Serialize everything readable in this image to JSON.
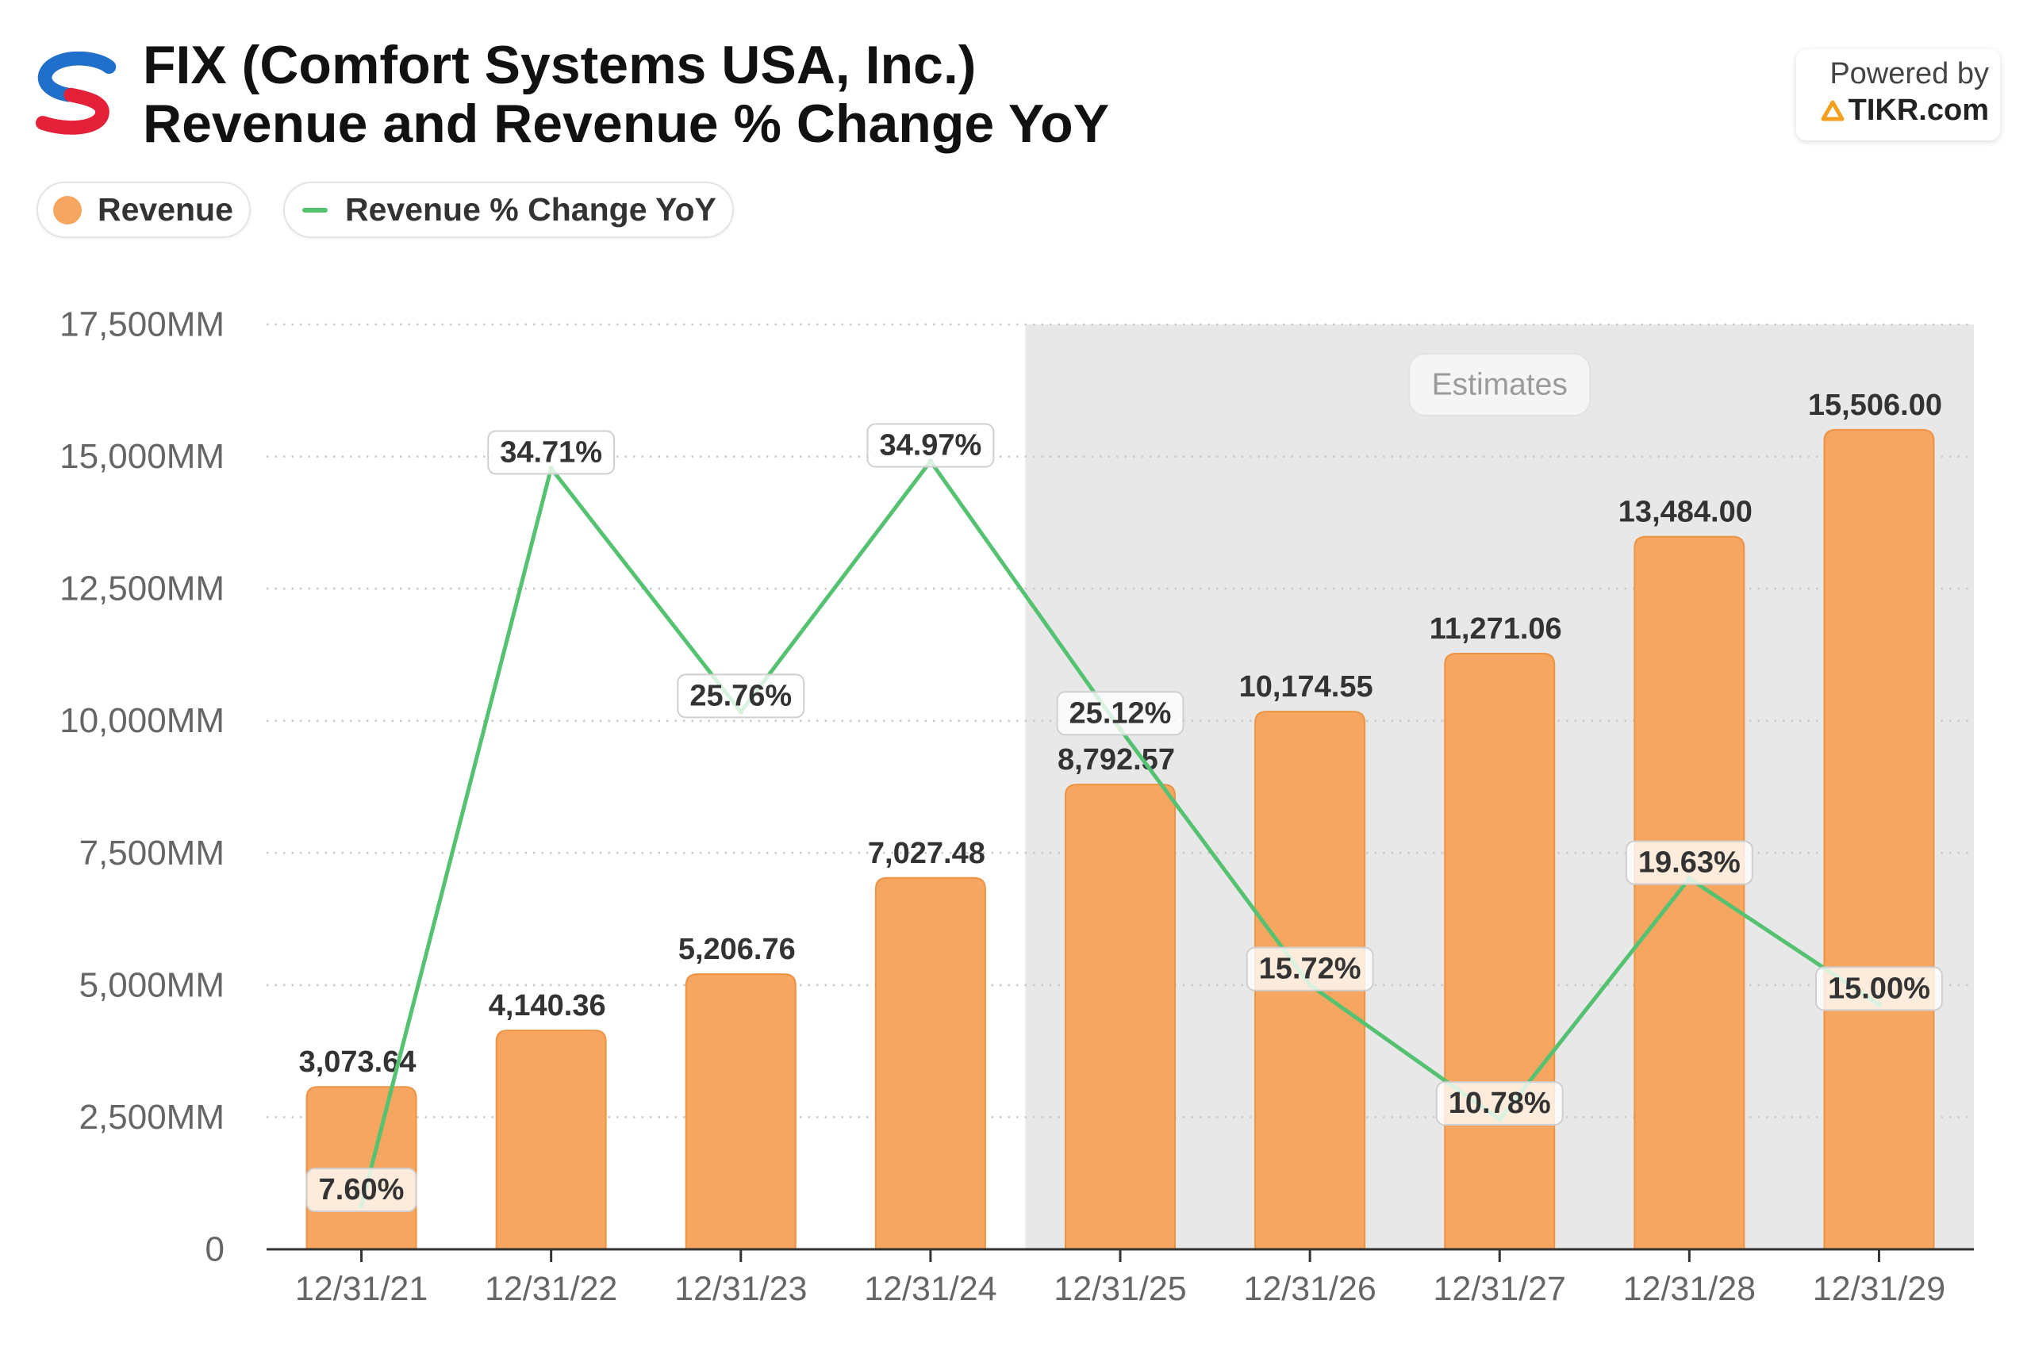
{
  "header": {
    "logo_icon": "comfort-systems-logo-icon"
  },
  "branding": {
    "powered_by": "Powered by",
    "site": "TIKR.com",
    "icon": "tikr-logo-icon"
  },
  "chart_data": {
    "type": "bar",
    "title_lines": [
      "FIX (Comfort Systems USA, Inc.)",
      "Revenue and Revenue % Change YoY"
    ],
    "legend_position": "top-left",
    "categories": [
      "12/31/21",
      "12/31/22",
      "12/31/23",
      "12/31/24",
      "12/31/25",
      "12/31/26",
      "12/31/27",
      "12/31/28",
      "12/31/29"
    ],
    "series": [
      {
        "name": "Revenue",
        "type": "bar",
        "color": "#F6A660",
        "values": [
          3073.64,
          4140.36,
          5206.76,
          7027.48,
          8792.57,
          10174.55,
          11271.06,
          13484.0,
          15506.0
        ],
        "data_labels": [
          "3,073.64",
          "4,140.36",
          "5,206.76",
          "7,027.48",
          "8,792.57",
          "10,174.55",
          "11,271.06",
          "13,484.00",
          "15,506.00"
        ]
      },
      {
        "name": "Revenue % Change YoY",
        "type": "line",
        "color": "#55C272",
        "values": [
          7.6,
          34.71,
          25.76,
          34.97,
          25.12,
          15.72,
          10.78,
          19.63,
          15.0
        ],
        "data_labels": [
          "7.60%",
          "34.71%",
          "25.76%",
          "34.97%",
          "25.12%",
          "15.72%",
          "10.78%",
          "19.63%",
          "15.00%"
        ]
      }
    ],
    "ylim": [
      0,
      17500
    ],
    "yticks": [
      0,
      2500,
      5000,
      7500,
      10000,
      12500,
      15000,
      17500
    ],
    "ytick_labels": [
      "0",
      "2,500MM",
      "5,000MM",
      "7,500MM",
      "10,000MM",
      "12,500MM",
      "15,000MM",
      "17,500MM"
    ],
    "y2lim": [
      6,
      40
    ],
    "grid": true,
    "estimates": {
      "label": "Estimates",
      "is_estimate": [
        false,
        false,
        false,
        false,
        true,
        true,
        true,
        true,
        true
      ],
      "color": "#E8E8E8"
    }
  }
}
